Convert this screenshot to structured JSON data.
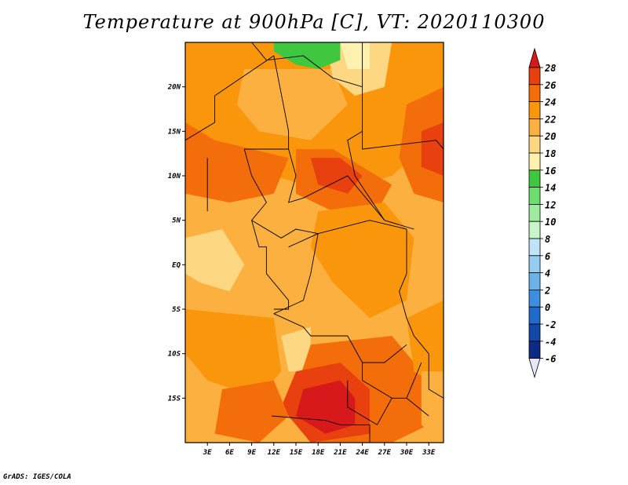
{
  "title": "Temperature at 900hPa [C], VT: 2020110300",
  "credit": "GrADS: IGES/COLA",
  "chart_data": {
    "type": "heatmap",
    "variable": "Temperature at 900hPa",
    "units": "C",
    "valid_time": "2020110300",
    "lon_range": [
      0,
      35
    ],
    "lat_range": [
      -20,
      25
    ],
    "x_ticks": [
      "3E",
      "6E",
      "9E",
      "12E",
      "15E",
      "18E",
      "21E",
      "24E",
      "27E",
      "30E",
      "33E"
    ],
    "y_ticks": [
      "20N",
      "15N",
      "10N",
      "5N",
      "EQ",
      "5S",
      "10S",
      "15S"
    ],
    "colorbar": {
      "levels": [
        "28",
        "26",
        "24",
        "22",
        "20",
        "18",
        "16",
        "14",
        "12",
        "10",
        "8",
        "6",
        "4",
        "2",
        "0",
        "-2",
        "-4",
        "-6"
      ],
      "colors": [
        "#d7191c",
        "#e8400e",
        "#f46d0b",
        "#f9960c",
        "#fcb040",
        "#fdd782",
        "#fff1b0",
        "#3fc73f",
        "#6fdc6f",
        "#9eea9e",
        "#c8f5c8",
        "#bfe3f7",
        "#95cdf0",
        "#6bb2e8",
        "#3e8ede",
        "#1f6acb",
        "#1448a8",
        "#0c2b85",
        "#000a5e"
      ],
      "low_extend_color": "#e6e6ff",
      "high_extend_color": "#d7191c"
    }
  }
}
